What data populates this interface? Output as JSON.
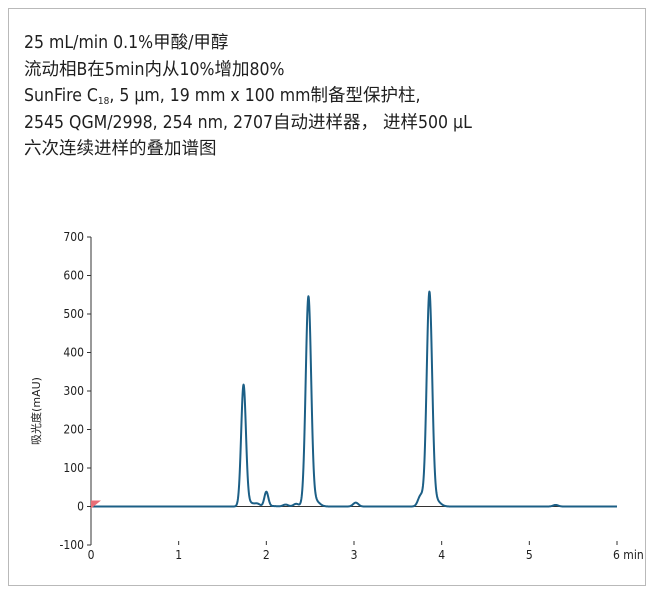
{
  "caption": {
    "line1": "25 mL/min 0.1%甲酸/甲醇",
    "line2": "流动相B在5min内从10%增加80%",
    "line3_prefix": "SunFire C",
    "line3_sub": "18",
    "line3_suffix": ", 5 µm, 19 mm x 100 mm制备型保护柱,",
    "line4": "2545 QGM/2998, 254 nm, 2707自动进样器， 进样500 µL",
    "line5": "六次连续进样的叠加谱图"
  },
  "chart_data": {
    "type": "line",
    "xlabel": "min",
    "ylabel": "吸光度(mAU)",
    "xlim": [
      0,
      6
    ],
    "ylim": [
      -100,
      700
    ],
    "x_ticks": [
      0,
      1,
      2,
      3,
      4,
      5,
      6
    ],
    "x_tick_labels": [
      "0",
      "1",
      "2",
      "3",
      "4",
      "5",
      "6 min"
    ],
    "y_ticks": [
      -100,
      0,
      100,
      200,
      300,
      400,
      500,
      600,
      700
    ],
    "y_tick_labels": [
      "-100",
      "0",
      "100",
      "200",
      "300",
      "400",
      "500",
      "600",
      "700"
    ],
    "line_color": "#1c5f86",
    "marker_color": "#e96e77",
    "injection_marker_time": 0,
    "baseline": 0,
    "peaks": [
      {
        "rt": 1.74,
        "height": 313
      },
      {
        "rt": 2.0,
        "height": 38
      },
      {
        "rt": 2.48,
        "height": 540
      },
      {
        "rt": 3.86,
        "height": 552
      }
    ],
    "minor_features": [
      {
        "rt": 1.9,
        "height": 6
      },
      {
        "rt": 2.22,
        "height": 5
      },
      {
        "rt": 2.34,
        "height": 7
      },
      {
        "rt": 3.02,
        "height": 10
      },
      {
        "rt": 3.76,
        "height": 28
      },
      {
        "rt": 5.3,
        "height": 4
      }
    ]
  }
}
